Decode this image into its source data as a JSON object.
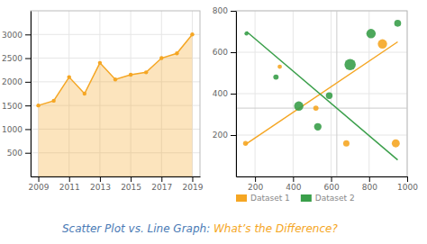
{
  "title": [
    {
      "text": "Scatter Plot vs. Line Graph: ",
      "color": "#4a7ab5"
    },
    {
      "text": "What’s the Difference?",
      "color": "#f5a623"
    }
  ],
  "chart_data": [
    {
      "type": "area",
      "x": [
        2009,
        2010,
        2011,
        2012,
        2013,
        2014,
        2015,
        2016,
        2017,
        2018,
        2019
      ],
      "series": [
        {
          "color": "#f5a623",
          "values": [
            1500,
            1600,
            2100,
            1750,
            2400,
            2050,
            2150,
            2200,
            2500,
            2600,
            3000
          ]
        }
      ],
      "marker": "circle",
      "xlim": [
        2008.5,
        2019.5
      ],
      "ylim": [
        0,
        3500
      ],
      "xticks": [
        2009,
        2011,
        2013,
        2015,
        2017,
        2019
      ],
      "yticks": [
        500,
        1000,
        1500,
        2000,
        2500,
        3000
      ],
      "grid": true
    },
    {
      "type": "scatter",
      "series": [
        {
          "name": "Dataset 1",
          "color": "#f5a623",
          "x": [
            150,
            330,
            520,
            680,
            870,
            940
          ],
          "values": [
            160,
            530,
            330,
            160,
            640,
            160
          ],
          "sizes": [
            15,
            12,
            18,
            25,
            55,
            40
          ]
        },
        {
          "name": "Dataset 2",
          "color": "#3a9f4a",
          "x": [
            155,
            310,
            430,
            530,
            590,
            700,
            810,
            950
          ],
          "values": [
            690,
            480,
            340,
            240,
            390,
            540,
            690,
            740
          ],
          "sizes": [
            10,
            18,
            55,
            35,
            28,
            80,
            55,
            30
          ]
        },
        {
          "type": "line",
          "color": "#f5a623",
          "x": [
            150,
            950
          ],
          "values": [
            155,
            650
          ]
        },
        {
          "type": "line",
          "color": "#3a9f4a",
          "x": [
            155,
            950
          ],
          "values": [
            700,
            80
          ]
        }
      ],
      "reference_lines": [
        {
          "axis": "x",
          "value": 630,
          "color": "#cccccc"
        },
        {
          "axis": "y",
          "value": 330,
          "color": "#cccccc"
        }
      ],
      "xlim": [
        100,
        1000
      ],
      "ylim": [
        0,
        800
      ],
      "xticks": [
        200,
        400,
        600,
        800,
        1000
      ],
      "yticks": [
        200,
        400,
        600,
        800
      ],
      "grid": true,
      "legend": "bottom left"
    }
  ]
}
